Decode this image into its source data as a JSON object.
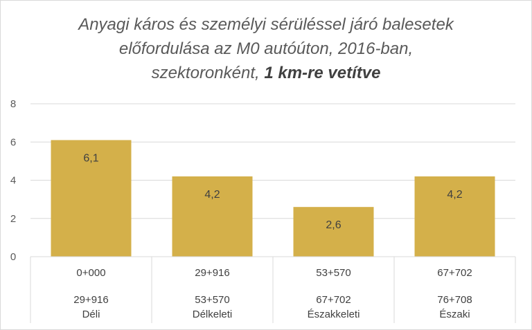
{
  "chart_data": {
    "type": "bar",
    "title_line1": "Anyagi káros és személyi sérüléssel járó balesetek",
    "title_line2": "előfordulása az M0 autóúton, 2016-ban,",
    "title_line3_prefix": "szektoronként, ",
    "title_line3_bold": "1 km-re vetítve",
    "categories": [
      {
        "from": "0+000",
        "to": "29+916",
        "name": "Déli"
      },
      {
        "from": "29+916",
        "to": "53+570",
        "name": "Délkeleti"
      },
      {
        "from": "53+570",
        "to": "67+702",
        "name": "Északkeleti"
      },
      {
        "from": "67+702",
        "to": "76+708",
        "name": "Északi"
      }
    ],
    "values": [
      6.1,
      4.2,
      2.6,
      4.2
    ],
    "value_labels": [
      "6,1",
      "4,2",
      "2,6",
      "4,2"
    ],
    "ylim": [
      0,
      8
    ],
    "yticks": [
      0,
      2,
      4,
      6,
      8
    ],
    "grid": true,
    "bar_color": "#d4b04a",
    "grid_color": "#d9d9d9"
  }
}
